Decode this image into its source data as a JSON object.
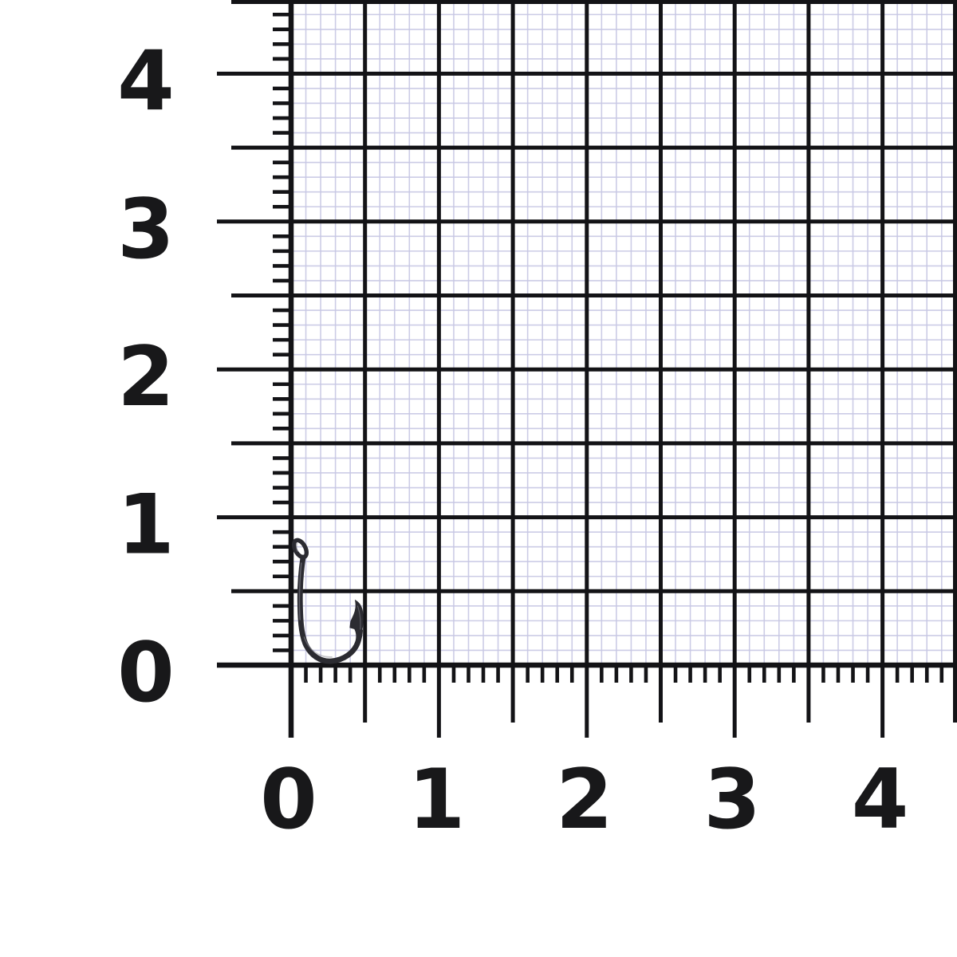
{
  "scene": {
    "description": "small black fishing hook photographed on centimeter graph paper with ruler scales",
    "background_color": "#ffffff"
  },
  "grid": {
    "x_labels": [
      "0",
      "1",
      "2",
      "3",
      "4"
    ],
    "y_labels": [
      "4",
      "3",
      "2",
      "1",
      "0"
    ],
    "range": {
      "min": 0,
      "max": 4.5
    },
    "label_step": 1,
    "major_step": 0.5,
    "minor_step": 0.1,
    "colors": {
      "heavy_line": "#131316",
      "fine_line": "#c7c7e3",
      "label": "#18181a"
    }
  },
  "hook": {
    "name": "fishing-hook",
    "body_color": "#2b2b31",
    "highlight_color": "#8d8d97",
    "extent_units": {
      "x_min": 0.04,
      "x_max": 0.5,
      "y_min": 0.05,
      "y_max": 0.85
    }
  }
}
